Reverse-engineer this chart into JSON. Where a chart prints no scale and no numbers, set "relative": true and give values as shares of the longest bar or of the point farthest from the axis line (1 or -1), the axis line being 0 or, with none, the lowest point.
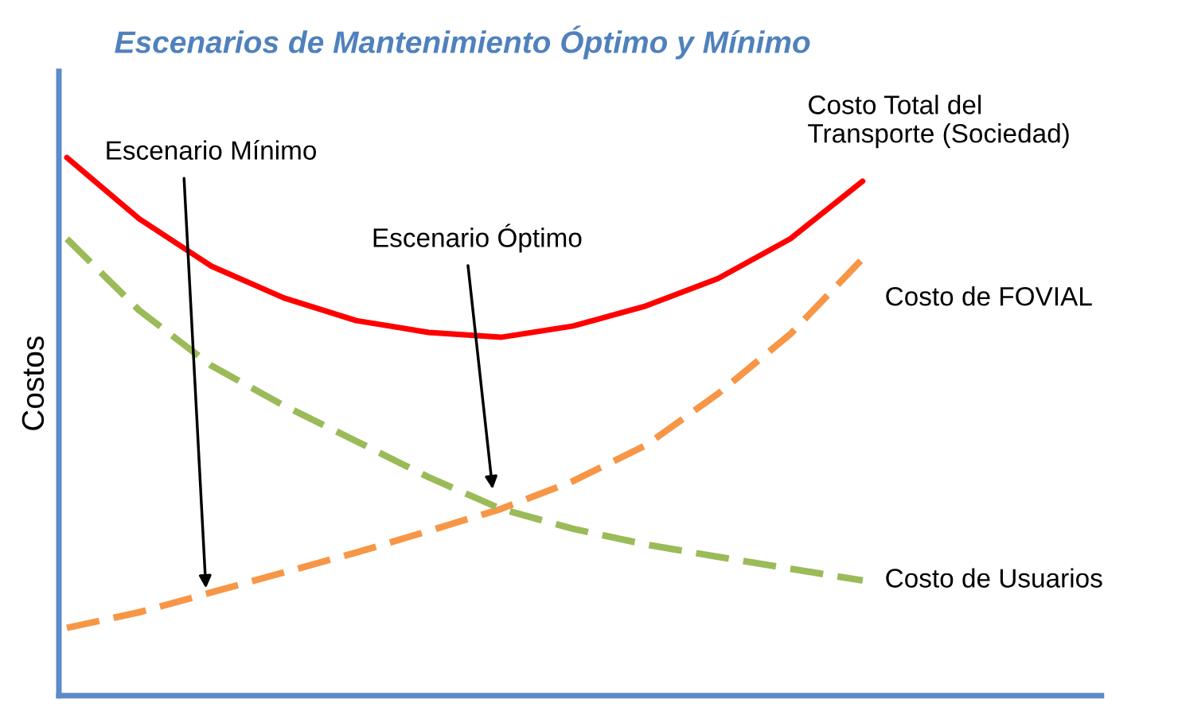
{
  "chart_data": {
    "type": "line",
    "title": "Escenarios de Mantenimiento Óptimo y Mínimo",
    "ylabel": "Costos",
    "relative": true,
    "legend": false,
    "categories": [
      null,
      null,
      null,
      null,
      null,
      null,
      null,
      null,
      null,
      null,
      null,
      null
    ],
    "series": [
      {
        "name": "Costo Total del\nTransporte (Sociedad)",
        "color": "#ff0000",
        "line_style": "solid",
        "values": [
          1.0,
          0.886,
          0.798,
          0.739,
          0.697,
          0.675,
          0.666,
          0.687,
          0.724,
          0.775,
          0.849,
          0.956
        ]
      },
      {
        "name": "Costo de FOVIAL",
        "color": "#f79646",
        "line_style": "dashed",
        "values": [
          0.126,
          0.155,
          0.192,
          0.229,
          0.266,
          0.306,
          0.347,
          0.399,
          0.465,
          0.561,
          0.672,
          0.812
        ]
      },
      {
        "name": "Costo de Usuarios",
        "color": "#9bbb59",
        "line_style": "dashed",
        "values": [
          0.849,
          0.716,
          0.613,
          0.539,
          0.473,
          0.406,
          0.347,
          0.31,
          0.281,
          0.258,
          0.236,
          0.214
        ]
      }
    ],
    "annotations": [
      "Escenario Mínimo",
      "Escenario Óptimo"
    ]
  }
}
